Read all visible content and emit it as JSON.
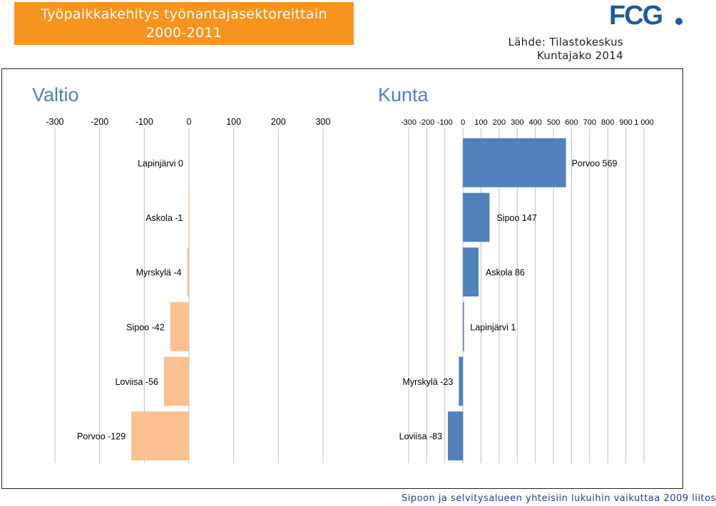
{
  "header": {
    "title_line1": "Työpaikkakehitys työnantajasektoreittain",
    "title_line2": "2000-2011",
    "source_line1": "Lähde: Tilastokeskus",
    "source_line2": "Kuntajako 2014",
    "logo_text": "FCG"
  },
  "footer": {
    "text": "Sipoon ja selvitysalueen yhteisiin lukuihin vaikuttaa 2009 liitos"
  },
  "colors": {
    "valtio_bar": "#fac090",
    "kunta_bar": "#4f81bd",
    "title_bg": "#f7941d",
    "panel_title": "#4f81bd",
    "logo": "#1f5aa0"
  },
  "chart_data": [
    {
      "type": "bar",
      "orientation": "horizontal",
      "title": "Valtio",
      "xlim": [
        -300,
        300
      ],
      "ticks": [
        "-300",
        "-200",
        "-100",
        "0",
        "100",
        "200",
        "300"
      ],
      "categories": [
        "Lapinjärvi",
        "Askola",
        "Myrskylä",
        "Sipoo",
        "Loviisa",
        "Porvoo"
      ],
      "values": [
        0,
        -1,
        -4,
        -42,
        -56,
        -129
      ],
      "labels": [
        "Lapinjärvi 0",
        "Askola -1",
        "Myrskylä -4",
        "Sipoo -42",
        "Loviisa -56",
        "Porvoo -129"
      ]
    },
    {
      "type": "bar",
      "orientation": "horizontal",
      "title": "Kunta",
      "xlim": [
        -300,
        1000
      ],
      "ticks": [
        "-300",
        "-200",
        "-100",
        "0",
        "100",
        "200",
        "300",
        "400",
        "500",
        "600",
        "700",
        "800",
        "900",
        "1 000"
      ],
      "categories": [
        "Porvoo",
        "Sipoo",
        "Askola",
        "Lapinjärvi",
        "Myrskylä",
        "Loviisa"
      ],
      "values": [
        569,
        147,
        86,
        1,
        -23,
        -83
      ],
      "labels": [
        "Porvoo 569",
        "Sipoo 147",
        "Askola 86",
        "Lapinjärvi 1",
        "Myrskylä -23",
        "Loviisa -83"
      ]
    }
  ]
}
